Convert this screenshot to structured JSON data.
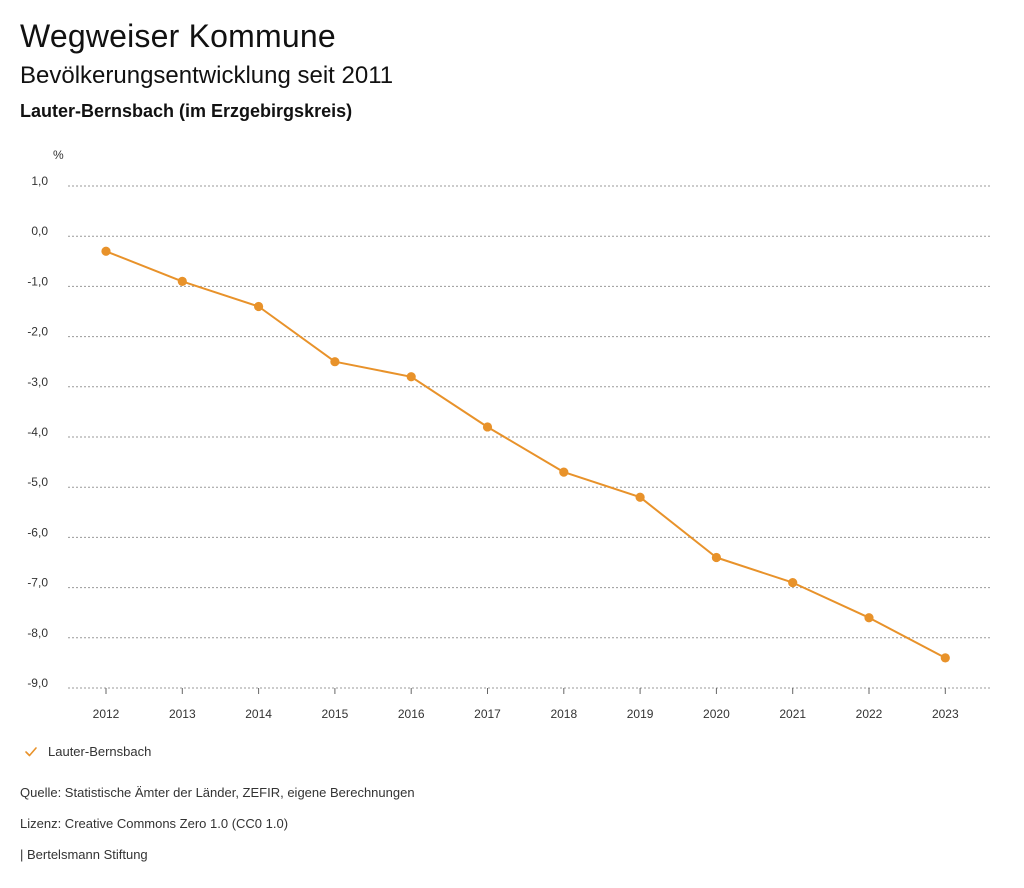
{
  "header": {
    "title": "Wegweiser Kommune",
    "subtitle": "Bevölkerungsentwicklung seit 2011",
    "region": "Lauter-Bernsbach (im Erzgebirgskreis)"
  },
  "chart_data": {
    "type": "line",
    "unit_label": "%",
    "categories": [
      "2012",
      "2013",
      "2014",
      "2015",
      "2016",
      "2017",
      "2018",
      "2019",
      "2020",
      "2021",
      "2022",
      "2023"
    ],
    "series": [
      {
        "name": "Lauter-Bernsbach",
        "values": [
          -0.3,
          -0.9,
          -1.4,
          -2.5,
          -2.8,
          -3.8,
          -4.7,
          -5.2,
          -6.4,
          -6.9,
          -7.6,
          -8.4
        ],
        "color": "#e8922a"
      }
    ],
    "ylim": [
      -9.0,
      1.0
    ],
    "yticks": [
      "1,0",
      "0,0",
      "-1,0",
      "-2,0",
      "-3,0",
      "-4,0",
      "-5,0",
      "-6,0",
      "-7,0",
      "-8,0",
      "-9,0"
    ],
    "grid": true,
    "legend_position": "bottom-left"
  },
  "legend": {
    "label": "Lauter-Bernsbach",
    "color": "#e8922a"
  },
  "footer": {
    "source": "Quelle: Statistische Ämter der Länder, ZEFIR, eigene Berechnungen",
    "license": "Lizenz: Creative Commons Zero 1.0 (CC0 1.0)",
    "publisher": "| Bertelsmann Stiftung"
  }
}
